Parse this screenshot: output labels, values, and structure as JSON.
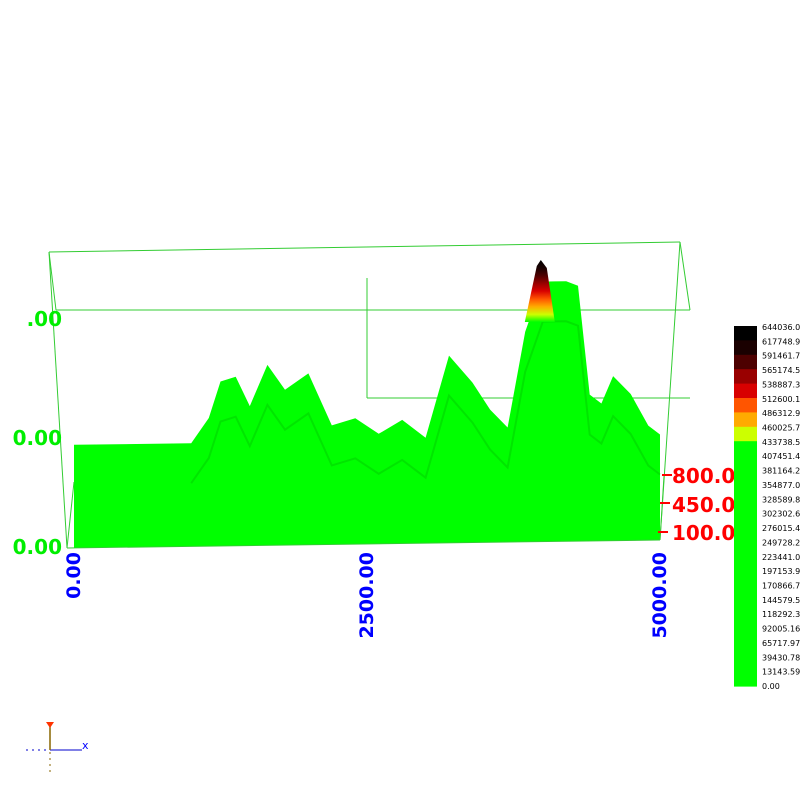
{
  "chart_data": {
    "type": "area",
    "surface_3d": true,
    "grid": false,
    "x_axis": {
      "ticks": [
        "0.00",
        "2500.00",
        "5000.00"
      ],
      "range": [
        0,
        5000
      ],
      "color": "#0000ff"
    },
    "y_axis": {
      "ticks": [
        "100.00",
        "450.00",
        "800.00"
      ],
      "range": [
        100,
        800
      ],
      "color": "#ff0000"
    },
    "z_axis": {
      "ticks": [
        "0.00",
        "0.00",
        ".00"
      ],
      "color": "#00ee00"
    },
    "profile": {
      "x": [
        0,
        1000,
        1150,
        1250,
        1380,
        1500,
        1650,
        1800,
        2000,
        2200,
        2400,
        2600,
        2800,
        3000,
        3200,
        3400,
        3550,
        3700,
        3850,
        4000,
        4100,
        4200,
        4300,
        4400,
        4500,
        4600,
        4750,
        4900,
        5000
      ],
      "z": [
        95000,
        95000,
        150000,
        230000,
        240000,
        175000,
        265000,
        210000,
        245000,
        130000,
        145000,
        110000,
        140000,
        100000,
        280000,
        220000,
        160000,
        120000,
        330000,
        440000,
        440000,
        440000,
        430000,
        190000,
        170000,
        230000,
        190000,
        120000,
        100000
      ]
    },
    "peak": {
      "x": 4000,
      "z": 644036.09
    },
    "colorbar": {
      "labels": [
        "644036.09",
        "617748.90",
        "591461.71",
        "565174.53",
        "538887.34",
        "512600.15",
        "486312.96",
        "460025.78",
        "433738.59",
        "407451.40",
        "381164.22",
        "354877.03",
        "328589.84",
        "302302.65",
        "276015.47",
        "249728.28",
        "223441.09",
        "197153.90",
        "170866.72",
        "144579.53",
        "118292.34",
        "92005.16",
        "65717.97",
        "39430.78",
        "13143.59",
        "0.00"
      ],
      "colors": [
        "#000000",
        "#1a0000",
        "#4d0000",
        "#990000",
        "#d80000",
        "#ff5500",
        "#ffaa00",
        "#ccff00",
        "#00ff00",
        "#00ff00",
        "#00ff00",
        "#00ff00",
        "#00ff00",
        "#00ff00",
        "#00ff00",
        "#00ff00",
        "#00ff00",
        "#00ff00",
        "#00ff00",
        "#00ff00",
        "#00ff00",
        "#00ff00",
        "#00ff00",
        "#00ff00",
        "#00ff00"
      ]
    },
    "colors": {
      "surface": "#00ff00",
      "surface_shade": "#00c800",
      "box": "#33cc33"
    }
  },
  "orientation_widget": {
    "x_label": "x"
  }
}
